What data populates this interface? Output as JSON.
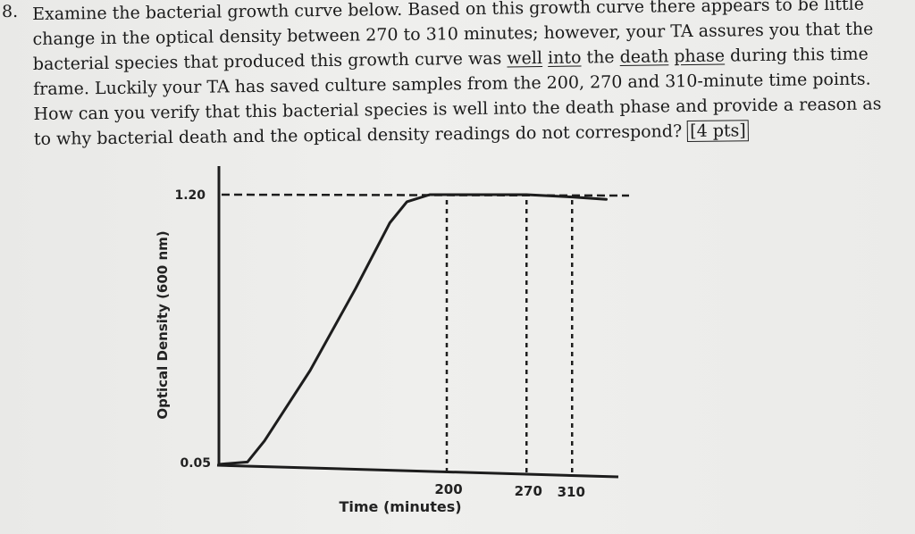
{
  "question": {
    "number": "8.",
    "text_parts": [
      "Examine the bacterial growth curve below. Based on this growth curve there appears to be little change in the optical density between 270 to 310 minutes; however, your TA assures you that the bacterial species that produced this growth curve was ",
      "well",
      " ",
      "into",
      " the ",
      "death",
      " ",
      "phase",
      " during this time frame. Luckily your TA has saved culture samples from the 200, 270 and 310-minute time points. How can you verify that this bacterial species is well into the death phase and provide a reason as to why bacterial death and the optical density readings do not correspond? ",
      "[4 pts]"
    ]
  },
  "chart_data": {
    "type": "line",
    "xlabel": "Time (minutes)",
    "ylabel": "Optical Density (600 nm)",
    "y_ticks": [
      "1.20",
      "0.05"
    ],
    "x_ticks": [
      "200",
      "270",
      "310"
    ],
    "reference_lines": {
      "horizontal": {
        "y": 1.2,
        "style": "dashed"
      },
      "vertical": [
        200,
        270,
        310
      ]
    },
    "series": [
      {
        "points": [
          [
            0,
            0.05
          ],
          [
            25,
            0.06
          ],
          [
            40,
            0.15
          ],
          [
            80,
            0.45
          ],
          [
            120,
            0.8
          ],
          [
            150,
            1.08
          ],
          [
            165,
            1.17
          ],
          [
            185,
            1.2
          ],
          [
            270,
            1.2
          ],
          [
            310,
            1.19
          ],
          [
            340,
            1.18
          ]
        ]
      }
    ]
  }
}
